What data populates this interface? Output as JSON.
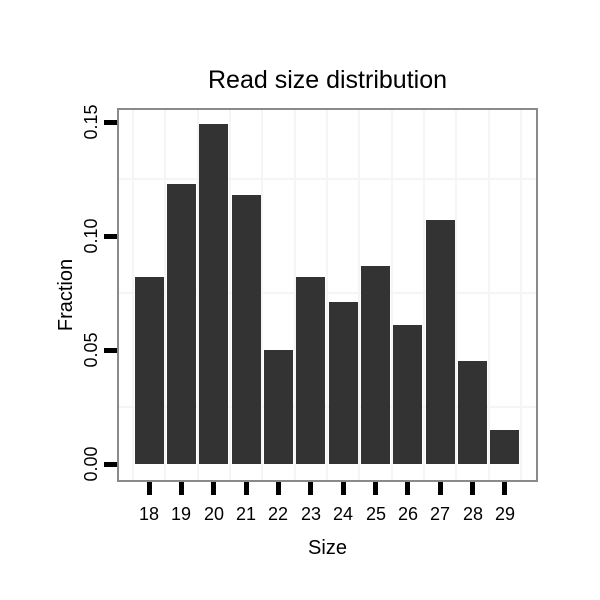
{
  "chart_data": {
    "type": "bar",
    "title": "Read size distribution",
    "xlabel": "Size",
    "ylabel": "Fraction",
    "categories": [
      "18",
      "19",
      "20",
      "21",
      "22",
      "23",
      "24",
      "25",
      "26",
      "27",
      "28",
      "29"
    ],
    "values": [
      0.082,
      0.123,
      0.149,
      0.118,
      0.05,
      0.082,
      0.071,
      0.087,
      0.061,
      0.107,
      0.045,
      0.015
    ],
    "ylim": [
      -0.008,
      0.157
    ],
    "yticks": [
      {
        "value": 0.0,
        "label": "0.00"
      },
      {
        "value": 0.05,
        "label": "0.05"
      },
      {
        "value": 0.1,
        "label": "0.10"
      },
      {
        "value": 0.15,
        "label": "0.15"
      }
    ],
    "y_minor_gridlines": [
      0.025,
      0.075,
      0.125
    ],
    "x_minor_gridlines_between_categories": true,
    "grid": "minor-only",
    "legend": "none",
    "colors": {
      "bar": "#333333",
      "panel_border": "#8a8a8a",
      "gridline": "#f5f5f5",
      "tick": "#000000",
      "text": "#000000",
      "background": "#ffffff"
    }
  }
}
